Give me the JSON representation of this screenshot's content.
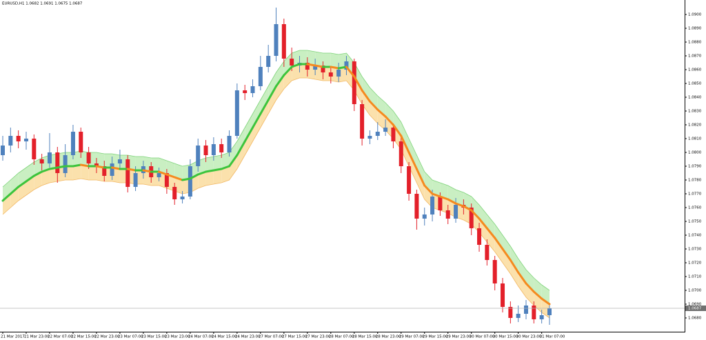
{
  "chart_data": {
    "type": "candlestick",
    "title": "EURUSD,H1  1.0682 1.0691 1.0675 1.0687",
    "categories": [
      "21 Mar 2017",
      null,
      null,
      "21 Mar 23:00",
      null,
      null,
      "22 Mar 07:00",
      null,
      null,
      "22 Mar 15:00",
      null,
      null,
      "22 Mar 23:00",
      null,
      null,
      "23 Mar 07:00",
      null,
      null,
      "23 Mar 15:00",
      null,
      null,
      "23 Mar 23:00",
      null,
      null,
      "24 Mar 07:00",
      null,
      null,
      "24 Mar 15:00",
      null,
      null,
      "24 Mar 23:00",
      null,
      null,
      "27 Mar 07:00",
      null,
      null,
      "27 Mar 15:00",
      null,
      null,
      "27 Mar 23:00",
      null,
      null,
      "28 Mar 07:00",
      null,
      null,
      "28 Mar 15:00",
      null,
      null,
      "28 Mar 23:00",
      null,
      null,
      "29 Mar 07:00",
      null,
      null,
      "29 Mar 15:00",
      null,
      null,
      "29 Mar 23:00",
      null,
      null,
      "30 Mar 07:00",
      null,
      null,
      "30 Mar 15:00",
      null,
      null,
      "30 Mar 23:00",
      null,
      null,
      "31 Mar 07:00",
      null
    ],
    "open": [
      1.0798,
      1.0805,
      1.0812,
      1.0808,
      1.081,
      1.0795,
      1.0792,
      1.08,
      1.0785,
      1.0798,
      1.0815,
      1.08,
      1.0792,
      1.079,
      1.0783,
      1.0792,
      1.0795,
      1.0775,
      1.0785,
      1.079,
      1.0782,
      1.0785,
      1.0775,
      1.0766,
      1.0768,
      1.079,
      1.0805,
      1.0798,
      1.0806,
      1.08,
      1.0812,
      1.0845,
      1.0843,
      1.0848,
      1.0862,
      1.087,
      1.0893,
      1.0868,
      1.0863,
      1.0865,
      1.086,
      1.0863,
      1.0858,
      1.0855,
      1.086,
      1.0866,
      1.0835,
      1.081,
      1.0812,
      1.0815,
      1.0818,
      1.0808,
      1.079,
      1.077,
      1.0752,
      1.0755,
      1.0768,
      1.0758,
      1.0752,
      1.0762,
      1.076,
      1.0745,
      1.0733,
      1.0722,
      1.0705,
      1.0688,
      1.068,
      1.0683,
      1.0689,
      1.0679,
      1.0682
    ],
    "high": [
      1.0812,
      1.0818,
      1.0816,
      1.0815,
      1.0813,
      1.0799,
      1.0814,
      1.0804,
      1.0806,
      1.082,
      1.0818,
      1.0804,
      1.0796,
      1.0794,
      1.0797,
      1.0802,
      1.0798,
      1.079,
      1.0794,
      1.0793,
      1.0789,
      1.0788,
      1.0778,
      1.0772,
      1.0795,
      1.081,
      1.0809,
      1.0811,
      1.081,
      1.0816,
      1.085,
      1.0849,
      1.0853,
      1.087,
      1.0878,
      1.0905,
      1.0897,
      1.0876,
      1.087,
      1.0869,
      1.0868,
      1.0866,
      1.0862,
      1.0865,
      1.087,
      1.0868,
      1.0838,
      1.0816,
      1.0822,
      1.0824,
      1.0821,
      1.0811,
      1.0793,
      1.0773,
      1.076,
      1.0773,
      1.0771,
      1.0762,
      1.0767,
      1.0766,
      1.0763,
      1.0749,
      1.0737,
      1.0725,
      1.0709,
      1.0692,
      1.0689,
      1.0693,
      1.0692,
      1.0686,
      1.0691
    ],
    "low": [
      1.0794,
      1.08,
      1.0803,
      1.0802,
      1.0791,
      1.0787,
      1.0789,
      1.0778,
      1.0782,
      1.0795,
      1.0796,
      1.0788,
      1.0785,
      1.0779,
      1.078,
      1.0788,
      1.0771,
      1.0772,
      1.0781,
      1.0778,
      1.0779,
      1.077,
      1.0762,
      1.0763,
      1.0766,
      1.0786,
      1.0793,
      1.0794,
      1.0796,
      1.0797,
      1.081,
      1.0838,
      1.084,
      1.0845,
      1.0858,
      1.0866,
      1.0862,
      1.0859,
      1.0858,
      1.0855,
      1.0856,
      1.0853,
      1.085,
      1.0851,
      1.0856,
      1.083,
      1.0805,
      1.0806,
      1.0809,
      1.0812,
      1.0803,
      1.0785,
      1.0765,
      1.0744,
      1.0747,
      1.075,
      1.0754,
      1.0748,
      1.0749,
      1.0755,
      1.074,
      1.0728,
      1.0718,
      1.07,
      1.0684,
      1.0676,
      1.0677,
      1.0679,
      1.0676,
      1.0676,
      1.0675
    ],
    "close": [
      1.0805,
      1.0812,
      1.0808,
      1.081,
      1.0795,
      1.0792,
      1.08,
      1.0785,
      1.0798,
      1.0815,
      1.08,
      1.0792,
      1.079,
      1.0783,
      1.0792,
      1.0795,
      1.0775,
      1.0785,
      1.079,
      1.0782,
      1.0785,
      1.0775,
      1.0766,
      1.0768,
      1.079,
      1.0805,
      1.0798,
      1.0806,
      1.08,
      1.0812,
      1.0845,
      1.0843,
      1.0848,
      1.0862,
      1.087,
      1.0893,
      1.0868,
      1.0863,
      1.0865,
      1.086,
      1.0863,
      1.0858,
      1.0855,
      1.086,
      1.0866,
      1.0835,
      1.081,
      1.0812,
      1.0815,
      1.0818,
      1.0808,
      1.079,
      1.077,
      1.0752,
      1.0755,
      1.0768,
      1.0758,
      1.0752,
      1.0762,
      1.076,
      1.0745,
      1.0733,
      1.0722,
      1.0705,
      1.0688,
      1.068,
      1.0683,
      1.0689,
      1.0679,
      1.0682,
      1.0687
    ],
    "bull_color": "#4f81bd",
    "bear_color": "#e3202a",
    "ma": {
      "values": [
        1.0765,
        1.077,
        1.0775,
        1.0779,
        1.0783,
        1.0786,
        1.0788,
        1.0789,
        1.079,
        1.079,
        1.0791,
        1.079,
        1.079,
        1.0789,
        1.0789,
        1.0788,
        1.0788,
        1.0787,
        1.0787,
        1.0786,
        1.0786,
        1.0784,
        1.0782,
        1.078,
        1.0781,
        1.0784,
        1.0786,
        1.0787,
        1.0788,
        1.079,
        1.0798,
        1.0808,
        1.0818,
        1.0828,
        1.0838,
        1.0848,
        1.0856,
        1.0862,
        1.0864,
        1.0864,
        1.0863,
        1.0862,
        1.0862,
        1.0861,
        1.0862,
        1.0855,
        1.0845,
        1.0837,
        1.0831,
        1.0826,
        1.082,
        1.0812,
        1.08,
        1.0788,
        1.0776,
        1.077,
        1.0768,
        1.0766,
        1.0763,
        1.0761,
        1.0758,
        1.0752,
        1.0745,
        1.0738,
        1.073,
        1.0722,
        1.0713,
        1.0705,
        1.0699,
        1.0694,
        1.069
      ],
      "up_color": "#3cc43c",
      "down_color": "#f58a1f"
    },
    "bands": {
      "upper": [
        1.0775,
        1.078,
        1.0785,
        1.0789,
        1.0793,
        1.0796,
        1.0798,
        1.0799,
        1.08,
        1.08,
        1.0801,
        1.08,
        1.08,
        1.0799,
        1.0799,
        1.0798,
        1.0798,
        1.0797,
        1.0797,
        1.0796,
        1.0796,
        1.0794,
        1.0792,
        1.079,
        1.0791,
        1.0794,
        1.0796,
        1.0797,
        1.0798,
        1.08,
        1.0808,
        1.0818,
        1.0828,
        1.0838,
        1.0848,
        1.0858,
        1.0866,
        1.0872,
        1.0874,
        1.0874,
        1.0873,
        1.0872,
        1.0872,
        1.0871,
        1.0872,
        1.0865,
        1.0855,
        1.0847,
        1.0841,
        1.0836,
        1.083,
        1.0822,
        1.081,
        1.0798,
        1.0786,
        1.078,
        1.0778,
        1.0776,
        1.0773,
        1.0771,
        1.0768,
        1.0762,
        1.0755,
        1.0748,
        1.074,
        1.0732,
        1.0723,
        1.0715,
        1.0709,
        1.0704,
        1.07
      ],
      "lower": [
        1.0755,
        1.076,
        1.0765,
        1.0769,
        1.0773,
        1.0776,
        1.0778,
        1.0779,
        1.078,
        1.078,
        1.0781,
        1.078,
        1.078,
        1.0779,
        1.0779,
        1.0778,
        1.0778,
        1.0777,
        1.0777,
        1.0776,
        1.0776,
        1.0774,
        1.0772,
        1.077,
        1.0771,
        1.0774,
        1.0776,
        1.0777,
        1.0778,
        1.078,
        1.0788,
        1.0798,
        1.0808,
        1.0818,
        1.0828,
        1.0838,
        1.0846,
        1.0852,
        1.0854,
        1.0854,
        1.0853,
        1.0852,
        1.0852,
        1.0851,
        1.0852,
        1.0845,
        1.0835,
        1.0827,
        1.0821,
        1.0816,
        1.081,
        1.0802,
        1.079,
        1.0778,
        1.0766,
        1.076,
        1.0758,
        1.0756,
        1.0753,
        1.0751,
        1.0748,
        1.0742,
        1.0735,
        1.0728,
        1.072,
        1.0712,
        1.0703,
        1.0695,
        1.0689,
        1.0684,
        1.068
      ],
      "upper_color": "#c9efc2",
      "lower_color": "#fbe1ac",
      "upper_edge": "#7ed37a",
      "lower_edge": "#f2b763"
    },
    "ylim": [
      1.067,
      1.09105
    ],
    "yticks": [
      {
        "value": 1.09,
        "label": "1.0900"
      },
      {
        "value": 1.089,
        "label": "1.0890"
      },
      {
        "value": 1.088,
        "label": "1.0880"
      },
      {
        "value": 1.087,
        "label": "1.0870"
      },
      {
        "value": 1.086,
        "label": "1.0860"
      },
      {
        "value": 1.085,
        "label": "1.0850"
      },
      {
        "value": 1.084,
        "label": "1.0840"
      },
      {
        "value": 1.083,
        "label": "1.0830"
      },
      {
        "value": 1.082,
        "label": "1.0820"
      },
      {
        "value": 1.081,
        "label": "1.0810"
      },
      {
        "value": 1.08,
        "label": "1.0800"
      },
      {
        "value": 1.079,
        "label": "1.0790"
      },
      {
        "value": 1.078,
        "label": "1.0780"
      },
      {
        "value": 1.077,
        "label": "1.0770"
      },
      {
        "value": 1.076,
        "label": "1.0760"
      },
      {
        "value": 1.075,
        "label": "1.0750"
      },
      {
        "value": 1.074,
        "label": "1.0740"
      },
      {
        "value": 1.073,
        "label": "1.0730"
      },
      {
        "value": 1.072,
        "label": "1.0720"
      },
      {
        "value": 1.071,
        "label": "1.0710"
      },
      {
        "value": 1.07,
        "label": "1.0700"
      },
      {
        "value": 1.069,
        "label": "1.0690"
      },
      {
        "value": 1.068,
        "label": "1.0680"
      }
    ],
    "current_price": {
      "value": 1.0687,
      "label": "1.0687"
    },
    "grid": false
  }
}
